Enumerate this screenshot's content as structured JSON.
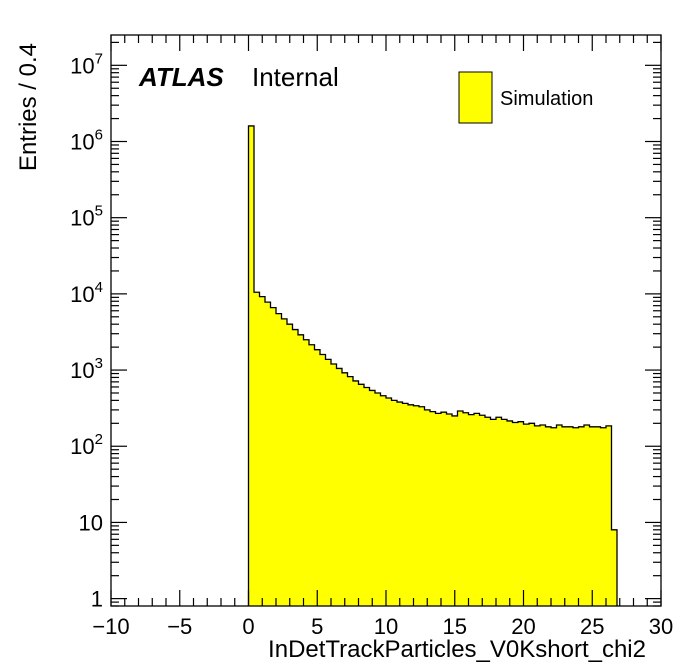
{
  "chart_data": {
    "type": "bar",
    "histogram": true,
    "title": "",
    "xlabel": "InDetTrackParticles_V0Kshort_chi2",
    "ylabel": "Entries / 0.4",
    "xlim": [
      -10,
      30
    ],
    "ylim": [
      0.8,
      25000000
    ],
    "log_y": true,
    "grid": false,
    "bin_width": 0.4,
    "bin_start": 0,
    "values": [
      1600000,
      10500,
      9200,
      7800,
      6600,
      5500,
      4700,
      4000,
      3400,
      2900,
      2500,
      2150,
      1850,
      1600,
      1380,
      1200,
      1050,
      920,
      820,
      720,
      650,
      590,
      540,
      500,
      460,
      430,
      400,
      380,
      365,
      350,
      340,
      330,
      300,
      285,
      270,
      280,
      265,
      250,
      290,
      275,
      260,
      270,
      255,
      240,
      225,
      240,
      225,
      215,
      205,
      210,
      195,
      200,
      185,
      190,
      180,
      175,
      190,
      180,
      180,
      175,
      180,
      190,
      180,
      180,
      175,
      185,
      8
    ],
    "x_ticks": [
      -10,
      -5,
      0,
      5,
      10,
      15,
      20,
      25,
      30
    ],
    "x_tick_labels": [
      "−10",
      "−5",
      "0",
      "5",
      "10",
      "15",
      "20",
      "25",
      "30"
    ],
    "y_ticks": [
      {
        "value": 1,
        "base": "1",
        "exp": ""
      },
      {
        "value": 10,
        "base": "10",
        "exp": ""
      },
      {
        "value": 100,
        "base": "10",
        "exp": "2"
      },
      {
        "value": 1000,
        "base": "10",
        "exp": "3"
      },
      {
        "value": 10000,
        "base": "10",
        "exp": "4"
      },
      {
        "value": 100000,
        "base": "10",
        "exp": "5"
      },
      {
        "value": 1000000,
        "base": "10",
        "exp": "6"
      },
      {
        "value": 10000000,
        "base": "10",
        "exp": "7"
      }
    ],
    "label_atlas": "ATLAS",
    "label_internal": "Internal",
    "legend": {
      "entries": [
        {
          "name": "Simulation",
          "color": "#ffff00"
        }
      ],
      "position": "top-right"
    },
    "fill_color": "#ffff00",
    "line_color": "#000000"
  }
}
